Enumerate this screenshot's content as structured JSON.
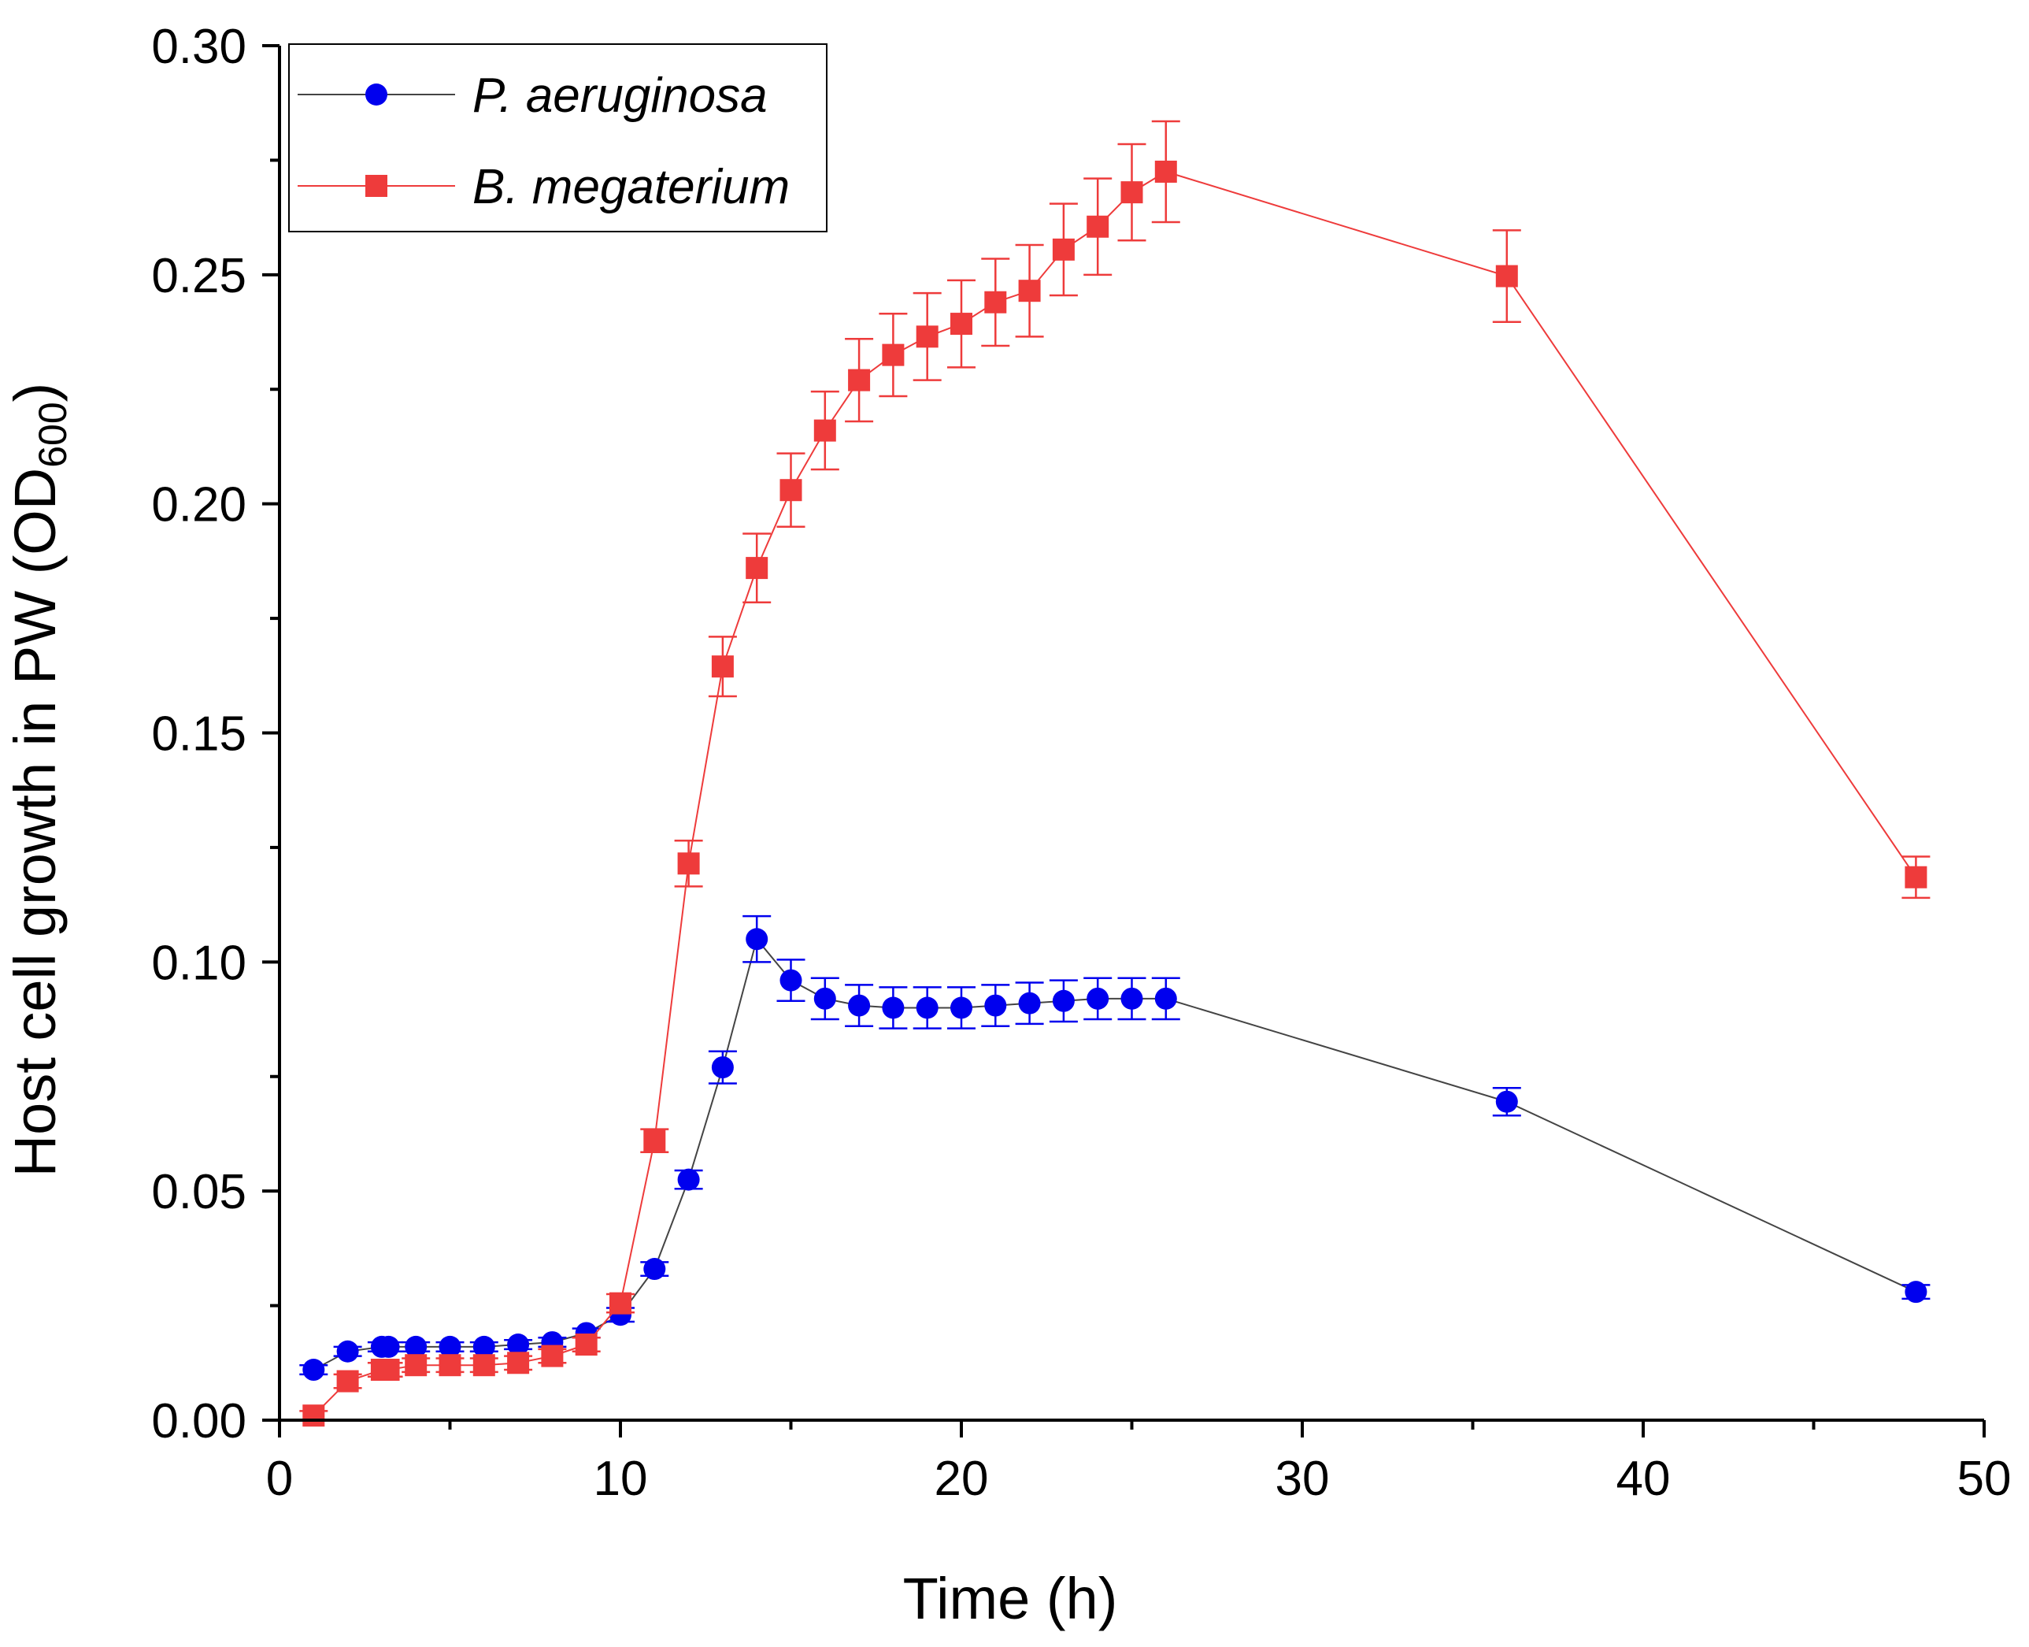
{
  "chart_data": {
    "type": "line",
    "title": "",
    "xlabel": "Time (h)",
    "ylabel_main": "Host cell growth in PW (OD",
    "ylabel_sub": "600",
    "ylabel_close": ")",
    "xlim": [
      0,
      50
    ],
    "ylim": [
      0,
      0.3
    ],
    "x_ticks": [
      0,
      10,
      20,
      30,
      40,
      50
    ],
    "x_tick_labels": [
      "0",
      "10",
      "20",
      "30",
      "40",
      "50"
    ],
    "x_minor_step": 5,
    "y_ticks": [
      0,
      0.05,
      0.1,
      0.15,
      0.2,
      0.25,
      0.3
    ],
    "y_tick_labels": [
      "0.00",
      "0.05",
      "0.10",
      "0.15",
      "0.20",
      "0.25",
      "0.30"
    ],
    "y_minor_step": 0.025,
    "grid": false,
    "legend_position": "top-left",
    "series": [
      {
        "name": "P. aeruginosa",
        "marker": "circle",
        "color": "#0000ee",
        "line_color": "#444444",
        "x": [
          1,
          2,
          3,
          3.2,
          4,
          5,
          6,
          7,
          8,
          9,
          10,
          11,
          12,
          13,
          14,
          15,
          16,
          17,
          18,
          19,
          20,
          21,
          22,
          23,
          24,
          25,
          26,
          36,
          48
        ],
        "y": [
          0.011,
          0.015,
          0.016,
          0.016,
          0.016,
          0.016,
          0.016,
          0.0165,
          0.017,
          0.019,
          0.023,
          0.033,
          0.0525,
          0.077,
          0.105,
          0.096,
          0.092,
          0.0905,
          0.09,
          0.09,
          0.09,
          0.0905,
          0.091,
          0.0915,
          0.092,
          0.092,
          0.092,
          0.0695,
          0.028
        ],
        "err": [
          0.001,
          0.001,
          0.001,
          0.001,
          0.001,
          0.001,
          0.001,
          0.001,
          0.001,
          0.001,
          0.0015,
          0.0015,
          0.002,
          0.0035,
          0.005,
          0.0045,
          0.0045,
          0.0045,
          0.0045,
          0.0045,
          0.0045,
          0.0045,
          0.0045,
          0.0045,
          0.0045,
          0.0045,
          0.0045,
          0.003,
          0.0015
        ]
      },
      {
        "name": "B. megaterium",
        "marker": "square",
        "color": "#ee3b3b",
        "line_color": "#ee3b3b",
        "x": [
          1,
          2,
          3,
          3.2,
          4,
          5,
          6,
          7,
          8,
          9,
          10,
          11,
          12,
          13,
          14,
          15,
          16,
          17,
          18,
          19,
          20,
          21,
          22,
          23,
          24,
          25,
          26,
          36,
          48
        ],
        "y": [
          0.001,
          0.0085,
          0.011,
          0.011,
          0.012,
          0.012,
          0.012,
          0.0125,
          0.014,
          0.0165,
          0.0255,
          0.061,
          0.1215,
          0.1645,
          0.186,
          0.203,
          0.216,
          0.227,
          0.2325,
          0.2365,
          0.2393,
          0.244,
          0.2465,
          0.2555,
          0.2605,
          0.268,
          0.2725,
          0.2497,
          0.1185
        ],
        "err": [
          0.001,
          0.0015,
          0.0015,
          0.0015,
          0.0015,
          0.0015,
          0.0015,
          0.0015,
          0.0015,
          0.0015,
          0.002,
          0.0025,
          0.005,
          0.0065,
          0.0075,
          0.008,
          0.0085,
          0.009,
          0.009,
          0.0095,
          0.0095,
          0.0095,
          0.01,
          0.01,
          0.0105,
          0.0105,
          0.011,
          0.01,
          0.0045
        ]
      }
    ]
  }
}
